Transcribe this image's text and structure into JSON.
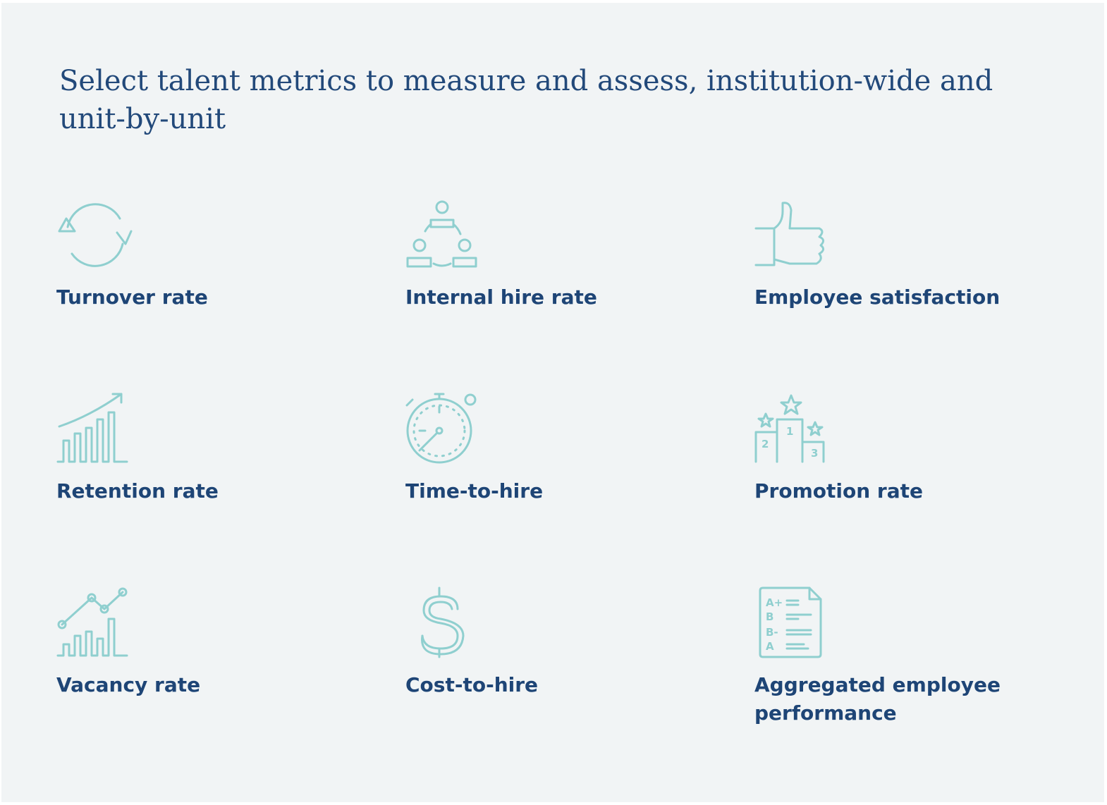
{
  "title": "Select talent metrics to measure and assess, institution-wide and unit-by-unit",
  "items": [
    {
      "label": "Turnover rate"
    },
    {
      "label": "Internal hire rate"
    },
    {
      "label": "Employee satisfaction"
    },
    {
      "label": "Retention rate"
    },
    {
      "label": "Time-to-hire"
    },
    {
      "label": "Promotion rate",
      "icon_labels": [
        "2",
        "1",
        "3"
      ]
    },
    {
      "label": "Vacancy rate"
    },
    {
      "label": "Cost-to-hire"
    },
    {
      "label": "Aggregated employee performance",
      "icon_labels": [
        "A+",
        "B",
        "B-",
        "A"
      ]
    }
  ]
}
